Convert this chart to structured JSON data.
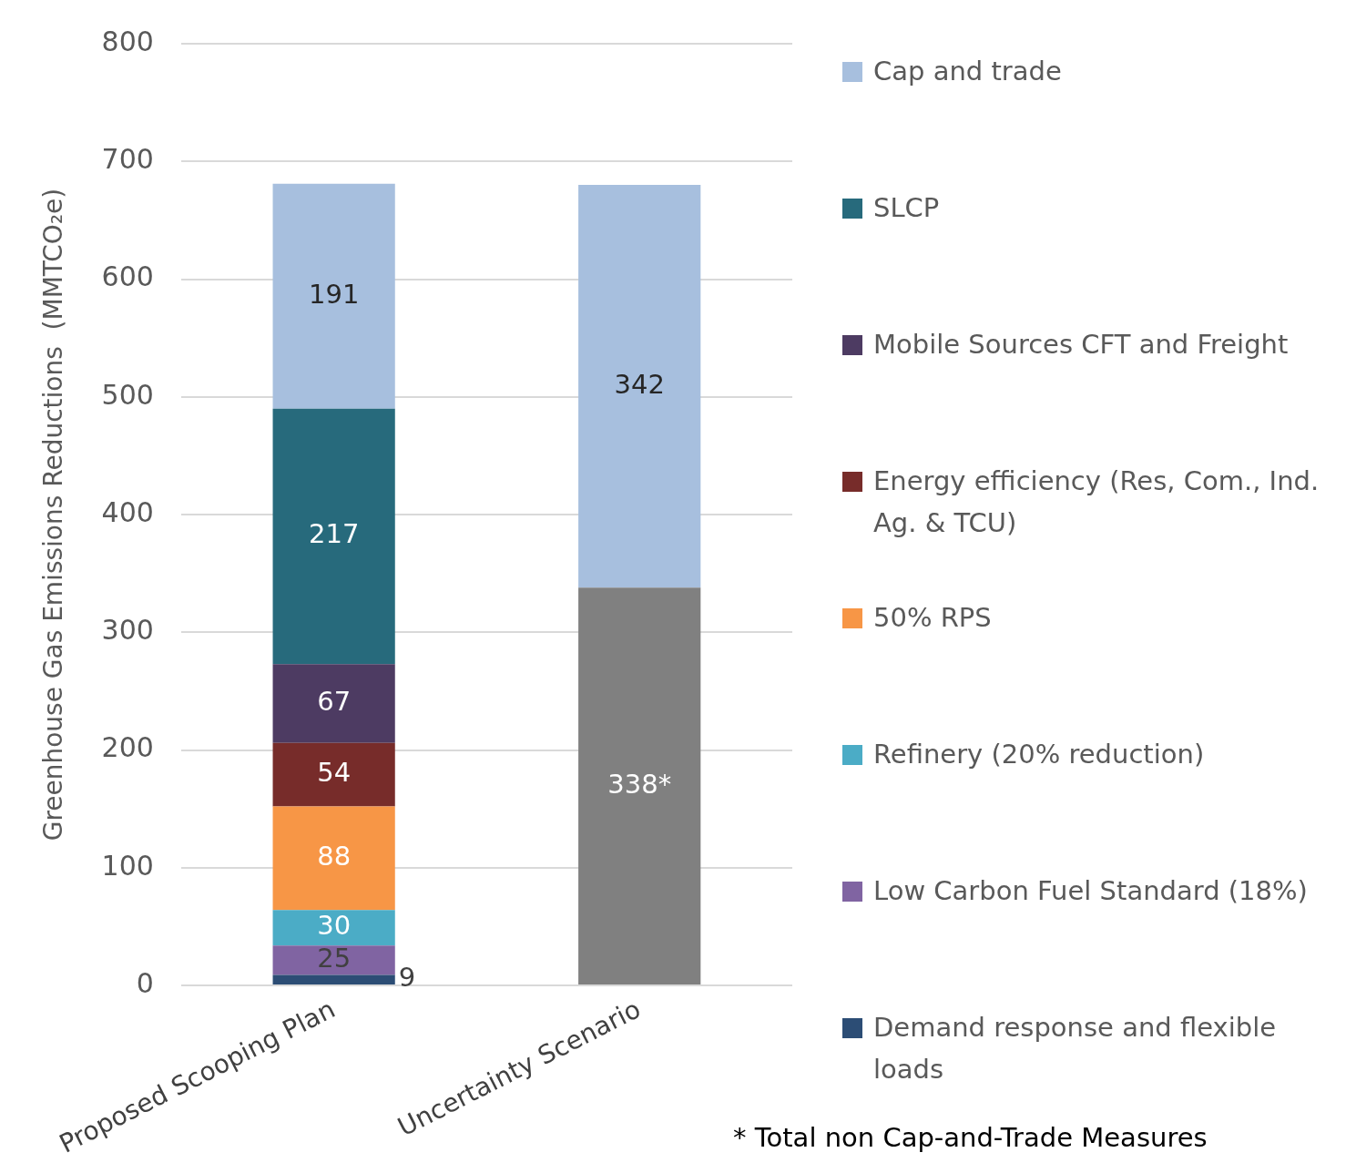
{
  "chart_data": {
    "type": "bar",
    "stacked": true,
    "categories": [
      "Proposed Scooping Plan",
      "Uncertainty Scenario"
    ],
    "ylabel": "Greenhouse Gas Emissions Reductions  (MMTCO₂e)",
    "ylim": [
      0,
      800
    ],
    "yticks": [
      0,
      100,
      200,
      300,
      400,
      500,
      600,
      700,
      800
    ],
    "grid": "y",
    "legend": "right",
    "data_labels": true,
    "annotations": [
      "* Total non Cap-and-Trade Measures"
    ],
    "series": [
      {
        "name": "Demand response and flexible loads",
        "color": "#2c4d75",
        "values": [
          9,
          null
        ]
      },
      {
        "name": "Low Carbon Fuel Standard (18%)",
        "color": "#8064a2",
        "values": [
          25,
          null
        ]
      },
      {
        "name": "Refinery (20%  reduction)",
        "color": "#4bacc6",
        "values": [
          30,
          null
        ]
      },
      {
        "name": "50% RPS",
        "color": "#f79646",
        "values": [
          88,
          null
        ]
      },
      {
        "name": "Energy efficiency (Res, Com., Ind. Ag. & TCU)",
        "color": "#772c2a",
        "values": [
          54,
          null
        ]
      },
      {
        "name": "Mobile Sources CFT and Freight",
        "color": "#4d3b62",
        "values": [
          67,
          null
        ]
      },
      {
        "name": "SLCP",
        "color": "#276a7c",
        "values": [
          217,
          null
        ]
      },
      {
        "color": "#808080",
        "values": [
          null,
          338
        ],
        "value_labels": [
          null,
          "338*"
        ]
      },
      {
        "name": "Cap and trade",
        "color": "#a7bfde",
        "values": [
          191,
          342
        ]
      }
    ]
  }
}
